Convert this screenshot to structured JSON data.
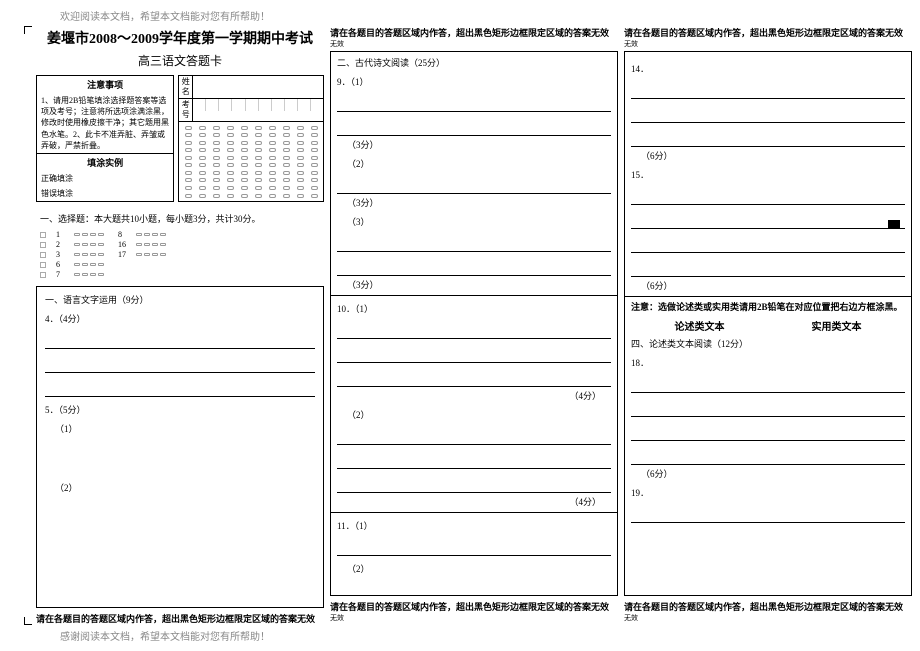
{
  "notes": {
    "header": "欢迎阅读本文档，希望本文档能对您有所帮助！",
    "footer": "感谢阅读本文档，希望本文档能对您有所帮助！"
  },
  "warning": "请在各题目的答题区域内作答，超出黑色矩形边框限定区域的答案无效",
  "warning_sub": "无效",
  "col1": {
    "title": "姜堰市2008～2009学年度第一学期期中考试",
    "subtitle": "高三语文答题卡",
    "instr_head": "注意事项",
    "instr_body": "1、请用2B铅笔填涂选择题答案等选项及考号；注意将所选项涂满涂黑，修改时使用橡皮擦干净；其它题用黑色水笔。2、此卡不准弄脏、弄皱或弄破，严禁折叠。",
    "fill_head": "填涂实例",
    "fill_ok": "正确填涂",
    "fill_bad": "错误填涂",
    "id_labels": [
      "姓名",
      "考号"
    ],
    "sel_head": "一、选择题：本大题共10小题，每小题3分，共计30分。",
    "sel_nums_a": [
      "1",
      "2",
      "3",
      "6",
      "7"
    ],
    "sel_nums_b": [
      "8",
      "16",
      "17",
      ""
    ],
    "sect1": "一、语言文字运用（9分）",
    "q4": "4．（4分）",
    "q5": "5．（5分）",
    "q5_1": "（1）",
    "q5_2": "（2）"
  },
  "col2": {
    "sect2": "二、古代诗文阅读（25分）",
    "q9_1": "9．（1）",
    "q9_s3a": "（3分）",
    "q9_2": "（2）",
    "q9_s3b": "（3分）",
    "q9_3": "（3）",
    "q9_s3c": "（3分）",
    "q10_1": "10．（1）",
    "q10_s4a": "（4分）",
    "q10_2": "（2）",
    "q10_s4b": "（4分）",
    "q11_1": "11．（1）",
    "q11_2": "（2）"
  },
  "col3": {
    "q14": "14．",
    "s6a": "（6分）",
    "q15": "15．",
    "s6b": "（6分）",
    "notice": "注意：选做论述类或实用类请用2B铅笔在对应位置把右边方框涂黑。",
    "ch_a": "论述类文本",
    "ch_b": "实用类文本",
    "sect4": "四、论述类文本阅读（12分）",
    "q18": "18．",
    "s6c": "（6分）",
    "q19": "19．"
  }
}
